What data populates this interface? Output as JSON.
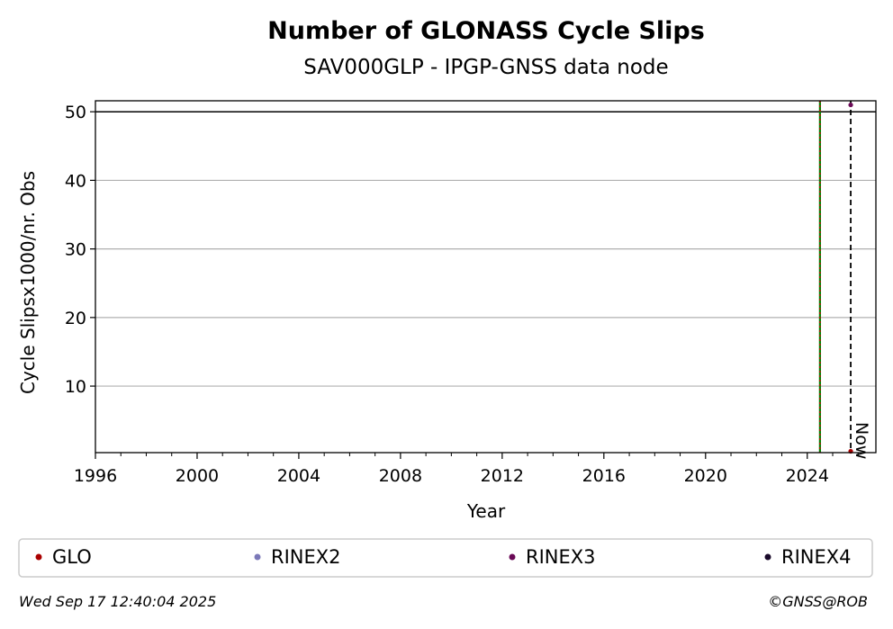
{
  "chart_data": {
    "type": "scatter",
    "title": "Number of GLONASS Cycle Slips",
    "subtitle": "SAV000GLP - IPGP-GNSS data node",
    "xlabel": "Year",
    "ylabel": "Cycle Slipsx1000/nr. Obs",
    "xlim": [
      1996,
      2026.7
    ],
    "ylim": [
      0.3,
      51.6
    ],
    "x_ticks": [
      1996,
      2000,
      2004,
      2008,
      2012,
      2016,
      2020,
      2024
    ],
    "y_ticks": [
      10,
      20,
      30,
      40,
      50
    ],
    "grid": "horizontal",
    "reference_line_y": 50,
    "series": [
      {
        "name": "GLO",
        "color": "#aa0000",
        "points": [
          {
            "x": 2025.71,
            "y": 0.5
          }
        ]
      },
      {
        "name": "RINEX2",
        "color": "#7b78b8",
        "points": []
      },
      {
        "name": "RINEX3",
        "color": "#6a0a56",
        "points": [
          {
            "x": 2025.71,
            "y": 51.0
          }
        ]
      },
      {
        "name": "RINEX4",
        "color": "#1a0a2a",
        "points": []
      }
    ],
    "vertical_lines": [
      {
        "x": 2024.5,
        "color": "#008000",
        "style": "solid"
      },
      {
        "x": 2024.5,
        "color": "#cc0000",
        "style": "dotted"
      },
      {
        "x": 2025.71,
        "color": "#000000",
        "style": "dashed",
        "label": "Now"
      }
    ],
    "legend_position": "bottom"
  },
  "footer": {
    "timestamp": "Wed Sep 17 12:40:04 2025",
    "credit": "©GNSS@ROB"
  }
}
